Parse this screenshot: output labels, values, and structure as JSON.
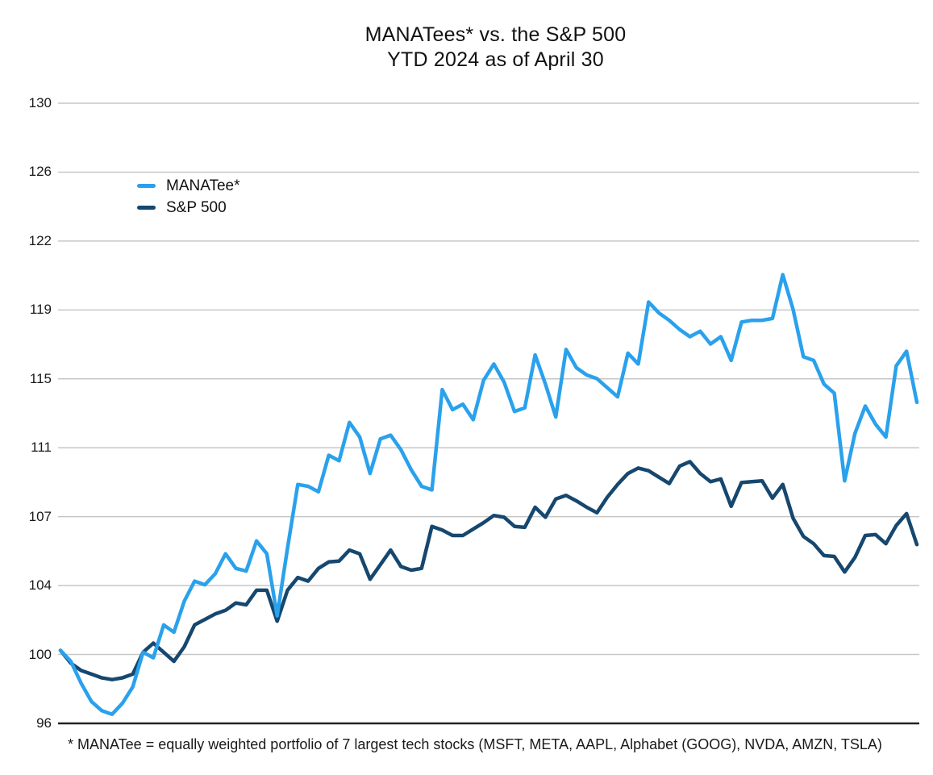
{
  "title": {
    "line1": "MANATees* vs. the S&P 500",
    "line2": "YTD 2024 as of April 30"
  },
  "legend": {
    "items": [
      {
        "label": "MANATee*",
        "color": "#2AA1EC"
      },
      {
        "label": "S&P 500",
        "color": "#16476F"
      }
    ]
  },
  "footnote": "* MANATee = equally weighted portfolio of 7 largest tech stocks (MSFT, META, AAPL, Alphabet (GOOG), NVDA, AMZN, TSLA)",
  "colors": {
    "manatee_line": "#2AA1EC",
    "sp500_line": "#16476F",
    "gridline": "#C7C7C7",
    "axis_baseline": "#222222",
    "text": "#111111"
  },
  "chart_data": {
    "type": "line",
    "title": "MANATees* vs. the S&P 500 — YTD 2024 as of April 30",
    "xlabel": "",
    "ylabel": "",
    "x_axis_labels_shown": false,
    "x_description": "daily points, indexed to 100 at start of 2024 through April 30",
    "ylim": [
      96,
      130
    ],
    "y_tick_labels": [
      "130",
      "126",
      "122",
      "119",
      "115",
      "111",
      "107",
      "104",
      "100",
      "96"
    ],
    "grid": "horizontal gridlines, dark baseline at 96",
    "legend_position": "upper-left inside plot",
    "series": [
      {
        "name": "MANATee*",
        "color": "#2AA1EC",
        "values": [
          100.0,
          99.4,
          98.2,
          97.2,
          96.7,
          96.5,
          97.1,
          98.0,
          99.9,
          99.6,
          101.4,
          101.0,
          102.7,
          103.8,
          103.6,
          104.2,
          105.3,
          104.5,
          104.35,
          106.0,
          105.3,
          101.9,
          105.6,
          109.1,
          109.0,
          108.7,
          110.7,
          110.4,
          112.5,
          111.7,
          109.7,
          111.6,
          111.8,
          111.0,
          109.9,
          109.0,
          108.8,
          114.3,
          113.2,
          113.5,
          112.65,
          114.8,
          115.7,
          114.7,
          113.1,
          113.3,
          116.2,
          114.6,
          112.8,
          116.5,
          115.5,
          115.1,
          114.9,
          114.4,
          113.9,
          116.3,
          115.7,
          119.1,
          118.5,
          118.1,
          117.6,
          117.2,
          117.5,
          116.8,
          117.2,
          115.9,
          118.0,
          118.1,
          118.1,
          118.2,
          120.6,
          118.7,
          116.1,
          115.9,
          114.6,
          114.1,
          109.3,
          111.9,
          113.4,
          112.4,
          111.7,
          115.6,
          116.4,
          113.6
        ]
      },
      {
        "name": "S&P 500",
        "color": "#16476F",
        "values": [
          100.0,
          99.3,
          98.9,
          98.7,
          98.5,
          98.4,
          98.5,
          98.7,
          99.9,
          100.4,
          99.9,
          99.4,
          100.2,
          101.4,
          101.7,
          102.0,
          102.2,
          102.6,
          102.5,
          103.3,
          103.3,
          101.6,
          103.3,
          104.0,
          103.8,
          104.5,
          104.85,
          104.9,
          105.5,
          105.3,
          103.9,
          104.7,
          105.5,
          104.6,
          104.4,
          104.5,
          106.8,
          106.6,
          106.3,
          106.3,
          106.65,
          107.0,
          107.4,
          107.3,
          106.8,
          106.75,
          107.85,
          107.3,
          108.3,
          108.5,
          108.2,
          107.85,
          107.55,
          108.4,
          109.1,
          109.7,
          110.0,
          109.85,
          109.5,
          109.15,
          110.1,
          110.35,
          109.7,
          109.25,
          109.4,
          107.9,
          109.2,
          109.25,
          109.3,
          108.35,
          109.1,
          107.25,
          106.25,
          105.85,
          105.2,
          105.15,
          104.3,
          105.1,
          106.3,
          106.35,
          105.85,
          106.85,
          107.5,
          105.8
        ]
      }
    ]
  }
}
